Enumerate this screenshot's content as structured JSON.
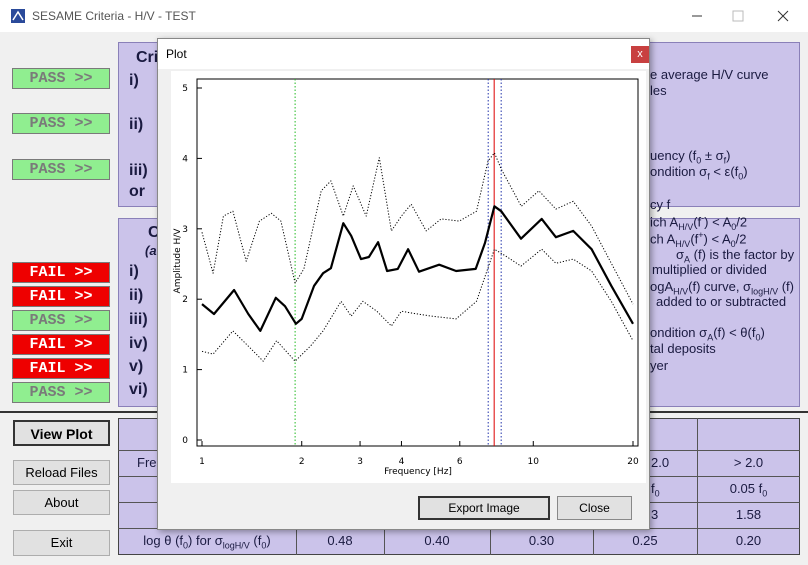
{
  "window": {
    "title": "SESAME Criteria - H/V - TEST"
  },
  "criteria_1": {
    "heading": "Cri",
    "results": [
      {
        "label": "PASS >>",
        "color": "#90ee90",
        "text_color": "#7a7a7a"
      },
      {
        "label": "PASS >>",
        "color": "#90ee90",
        "text_color": "#7a7a7a"
      },
      {
        "label": "PASS >>",
        "color": "#90ee90",
        "text_color": "#7a7a7a"
      }
    ],
    "items": [
      "i)",
      "ii)",
      "iii)",
      "or"
    ]
  },
  "criteria_2": {
    "heading": "C",
    "subheading": "(a",
    "results": [
      {
        "label": "FAIL >>",
        "color": "#ee0000",
        "text_color": "#ffffff"
      },
      {
        "label": "FAIL >>",
        "color": "#ee0000",
        "text_color": "#ffffff"
      },
      {
        "label": "PASS >>",
        "color": "#90ee90",
        "text_color": "#7a7a7a"
      },
      {
        "label": "FAIL >>",
        "color": "#ee0000",
        "text_color": "#ffffff"
      },
      {
        "label": "FAIL >>",
        "color": "#ee0000",
        "text_color": "#ffffff"
      },
      {
        "label": "PASS >>",
        "color": "#90ee90",
        "text_color": "#7a7a7a"
      }
    ],
    "items": [
      "i)",
      "ii)",
      "iii)",
      "iv)",
      "v)",
      "vi)"
    ]
  },
  "right_text": [
    "e average H/V curve",
    "les",
    [
      "uency (f",
      {
        "sub": "0"
      },
      " ± σ",
      {
        "sub": "f"
      },
      ")"
    ],
    [
      "ondition  σ",
      {
        "sub": "f"
      },
      " < ε(f",
      {
        "sub": "0"
      },
      ")"
    ],
    "cy f",
    [
      "ich A",
      {
        "sub": "H/V"
      },
      "(f",
      {
        "sup": "-"
      },
      ") < A",
      {
        "sub": "0"
      },
      "/2"
    ],
    [
      "ch A",
      {
        "sub": "H/V"
      },
      "(f",
      {
        "sup": "+"
      },
      ") < A",
      {
        "sub": "0"
      },
      "/2"
    ],
    [
      "σ",
      {
        "sub": "A"
      },
      " (f) is the factor by"
    ],
    "multiplied or divided",
    [
      "ogA",
      {
        "sub": "H/V"
      },
      "(f) curve, σ",
      {
        "sub": "logH/V"
      },
      " (f)"
    ],
    "added to or subtracted",
    [
      "ondition  σ",
      {
        "sub": "A"
      },
      "(f) < θ(f",
      {
        "sub": "0"
      },
      ")"
    ],
    "tal deposits",
    "yer"
  ],
  "buttons": [
    "View Plot",
    "Reload Files",
    "About",
    "Exit"
  ],
  "table": {
    "rows": [
      [
        "Fre",
        null,
        null,
        null,
        "2.0",
        "> 2.0"
      ],
      [
        null,
        null,
        null,
        null,
        [
          "f",
          {
            "sub": "0"
          }
        ],
        [
          "0.05 f",
          {
            "sub": "0"
          }
        ]
      ],
      [
        null,
        null,
        null,
        null,
        "3",
        "1.58"
      ],
      [
        [
          "log θ (f",
          {
            "sub": "0"
          },
          ") for σ",
          {
            "sub": "logH/V"
          },
          " (f",
          {
            "sub": "0"
          },
          ")"
        ],
        "0.48",
        "0.40",
        "0.30",
        "0.25",
        "0.20"
      ]
    ]
  },
  "plot_dialog": {
    "title": "Plot",
    "close_icon": "x",
    "buttons": [
      "Export Image",
      "Close"
    ],
    "chart": {
      "type": "line",
      "x_label": "Frequency [Hz]",
      "y_label": "Amplitude H/V",
      "xlog": true,
      "xlim": [
        1,
        20
      ],
      "xticks": [
        1,
        2,
        3,
        4,
        6,
        10,
        20
      ],
      "ylim": [
        0,
        5
      ],
      "yticks": [
        0,
        1,
        2,
        3,
        4,
        5
      ],
      "series": [
        {
          "color": "#000000",
          "style": "solid",
          "x": [
            1.0,
            1.087,
            1.25,
            1.38,
            1.5,
            1.67,
            1.78,
            1.92,
            2.0,
            2.18,
            2.32,
            2.45,
            2.67,
            2.82,
            3.02,
            3.19,
            3.4,
            3.62,
            3.9,
            4.19,
            4.52,
            5.2,
            5.85,
            6.7,
            7.15,
            7.63,
            8.0,
            9.18,
            10.6,
            11.7,
            13.2,
            15.0,
            17.2,
            20.0
          ],
          "values": [
            1.93,
            1.79,
            2.13,
            1.79,
            1.55,
            2.02,
            1.9,
            1.65,
            1.72,
            2.19,
            2.37,
            2.44,
            3.08,
            2.9,
            2.57,
            2.6,
            2.81,
            2.4,
            2.43,
            2.71,
            2.39,
            2.49,
            2.4,
            2.43,
            2.8,
            3.32,
            3.25,
            2.86,
            3.14,
            2.88,
            2.97,
            2.71,
            2.19,
            1.65
          ]
        },
        {
          "color": "#000000",
          "style": "dotted",
          "x": [
            1.0,
            1.08,
            1.16,
            1.24,
            1.36,
            1.49,
            1.62,
            1.73,
            1.91,
            2.03,
            2.29,
            2.45,
            2.67,
            2.86,
            3.13,
            3.43,
            3.73,
            4.0,
            4.28,
            4.75,
            5.27,
            5.98,
            6.74,
            7.3,
            7.63,
            8.0,
            9.2,
            10.4,
            11.7,
            13.2,
            15.0,
            17.2,
            20.0
          ],
          "values": [
            2.95,
            2.37,
            3.18,
            3.25,
            2.54,
            3.11,
            3.22,
            3.11,
            2.23,
            2.43,
            3.54,
            3.68,
            3.18,
            3.61,
            3.18,
            4.01,
            2.97,
            3.18,
            3.35,
            2.97,
            3.14,
            3.11,
            3.25,
            3.96,
            4.08,
            3.85,
            3.32,
            3.54,
            3.28,
            3.39,
            3.04,
            2.51,
            1.93
          ]
        },
        {
          "color": "#000000",
          "style": "dotted",
          "x": [
            1.0,
            1.08,
            1.24,
            1.41,
            1.53,
            1.68,
            1.91,
            2.13,
            2.32,
            2.63,
            2.82,
            3.06,
            3.37,
            3.73,
            4.0,
            4.34,
            4.92,
            5.85,
            6.74,
            7.63,
            8.28,
            9.18,
            10.6,
            11.7,
            13.2,
            15.0,
            17.2,
            20.0
          ],
          "values": [
            1.26,
            1.22,
            1.55,
            1.29,
            1.12,
            1.41,
            1.12,
            1.34,
            1.55,
            1.97,
            1.76,
            1.97,
            1.83,
            1.62,
            1.83,
            1.8,
            1.76,
            1.72,
            1.97,
            2.71,
            2.61,
            2.47,
            2.71,
            2.51,
            2.57,
            2.4,
            1.97,
            1.41
          ]
        }
      ],
      "vlines": [
        {
          "x": 1.91,
          "color": "#22bb22",
          "style": "dotted"
        },
        {
          "x": 7.31,
          "color": "#2233aa",
          "style": "dotted"
        },
        {
          "x": 7.62,
          "color": "#dd0000",
          "style": "solid"
        },
        {
          "x": 8.0,
          "color": "#2233aa",
          "style": "dotted"
        }
      ]
    }
  }
}
